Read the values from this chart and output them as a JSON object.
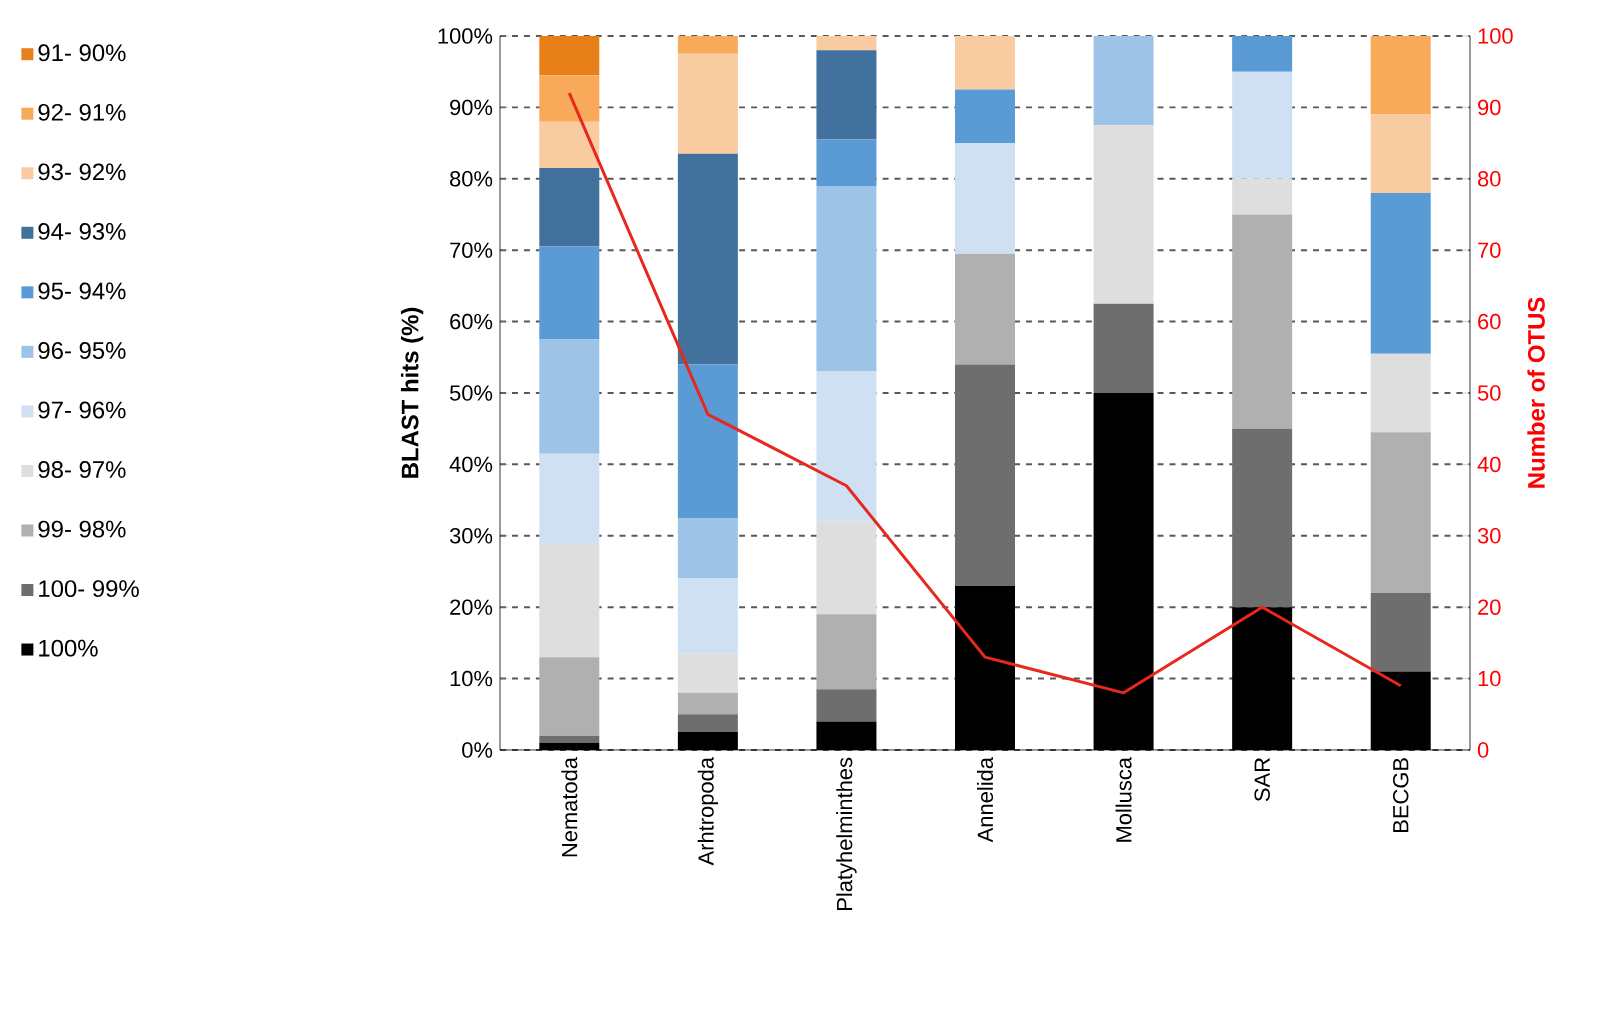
{
  "chart_data": {
    "type": "bar",
    "stacked": true,
    "categories": [
      "Nematoda",
      "Arhtropoda",
      "Platyhelminthes",
      "Annelida",
      "Mollusca",
      "SAR",
      "BECGB"
    ],
    "ylabel": "BLAST hits (%)",
    "y2label": "Number of OTUS",
    "ylim": [
      0,
      100
    ],
    "yticks": [
      {
        "value": 0,
        "label": "0%"
      },
      {
        "value": 10,
        "label": "10%"
      },
      {
        "value": 20,
        "label": "20%"
      },
      {
        "value": 30,
        "label": "30%"
      },
      {
        "value": 40,
        "label": "40%"
      },
      {
        "value": 50,
        "label": "50%"
      },
      {
        "value": 60,
        "label": "60%"
      },
      {
        "value": 70,
        "label": "70%"
      },
      {
        "value": 80,
        "label": "80%"
      },
      {
        "value": 90,
        "label": "90%"
      },
      {
        "value": 100,
        "label": "100%"
      }
    ],
    "y2lim": [
      0,
      100
    ],
    "y2ticks": [
      0,
      10,
      20,
      30,
      40,
      50,
      60,
      70,
      80,
      90,
      100
    ],
    "grid": "y",
    "legend": "left",
    "series": [
      {
        "name": "100%",
        "color": "#000000",
        "values": [
          1,
          2.5,
          4,
          23,
          50,
          20,
          11
        ]
      },
      {
        "name": "100- 99%",
        "color": "#6e6e6e",
        "values": [
          1,
          2.5,
          4.5,
          31,
          12.5,
          25,
          11
        ]
      },
      {
        "name": "99- 98%",
        "color": "#b0b0b0",
        "values": [
          11,
          3,
          10.5,
          15.5,
          0,
          30,
          22.5
        ]
      },
      {
        "name": "98- 97%",
        "color": "#dedede",
        "values": [
          16,
          5.5,
          13,
          0,
          25,
          5,
          11
        ]
      },
      {
        "name": "97- 96%",
        "color": "#cfe0f2",
        "values": [
          12.5,
          10.5,
          21,
          15.5,
          0,
          15,
          0
        ]
      },
      {
        "name": "96- 95%",
        "color": "#9dc3e6",
        "values": [
          16,
          8.5,
          26,
          0,
          12.5,
          0,
          0
        ]
      },
      {
        "name": "95- 94%",
        "color": "#5b9bd5",
        "values": [
          13,
          21.5,
          6.5,
          7.5,
          0,
          5,
          22.5
        ]
      },
      {
        "name": "94- 93%",
        "color": "#41719c",
        "values": [
          11,
          29.5,
          12.5,
          0,
          0,
          0,
          0
        ]
      },
      {
        "name": "93- 92%",
        "color": "#f9cba0",
        "values": [
          6.5,
          14,
          2,
          7.5,
          0,
          0,
          11
        ]
      },
      {
        "name": "92- 91%",
        "color": "#f9a95a",
        "values": [
          6.5,
          2.5,
          0,
          0,
          0,
          0,
          11
        ]
      },
      {
        "name": "91- 90%",
        "color": "#e8801a",
        "values": [
          5.5,
          0,
          0,
          0,
          0,
          0,
          0
        ]
      },
      {
        "type": "line",
        "axis": "y2",
        "color": "#e8281e",
        "values": [
          92,
          47,
          37,
          13,
          8,
          20,
          9
        ]
      }
    ]
  }
}
